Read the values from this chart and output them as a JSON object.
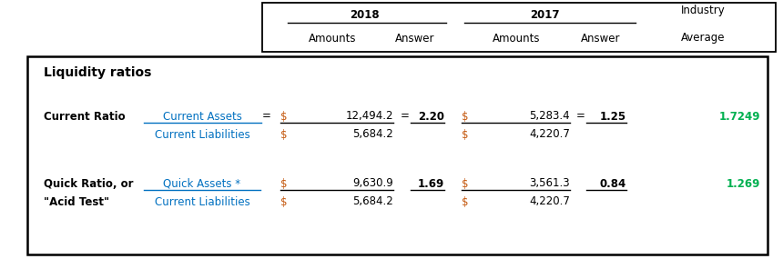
{
  "header_year_2018": "2018",
  "header_year_2017": "2017",
  "header_industry": "Industry",
  "header_amounts": "Amounts",
  "header_answer": "Answer",
  "header_average": "Average",
  "section_title": "Liquidity ratios",
  "ratio1_name": "Current Ratio",
  "ratio1_num_label": "Current Assets",
  "ratio1_eq": "=",
  "ratio1_dollar1": "$",
  "ratio1_num_2018": "12,494.2",
  "ratio1_eq2": "=",
  "ratio1_ans_2018": "2.20",
  "ratio1_dollar2": "$",
  "ratio1_num_2017": "5,283.4",
  "ratio1_eq3": "=",
  "ratio1_ans_2017": "1.25",
  "ratio1_ind_avg": "1.7249",
  "ratio1_den_label": "Current Liabilities",
  "ratio1_dollar3": "$",
  "ratio1_den_2018": "5,684.2",
  "ratio1_dollar4": "$",
  "ratio1_den_2017": "4,220.7",
  "ratio2_name1": "Quick Ratio, or",
  "ratio2_name2": "\"Acid Test\"",
  "ratio2_num_label": "Quick Assets *",
  "ratio2_dollar1": "$",
  "ratio2_num_2018": "9,630.9",
  "ratio2_ans_2018": "1.69",
  "ratio2_dollar2": "$",
  "ratio2_num_2017": "3,561.3",
  "ratio2_ans_2017": "0.84",
  "ratio2_ind_avg": "1.269",
  "ratio2_den_label": "Current Liabilities",
  "ratio2_dollar3": "$",
  "ratio2_den_2018": "5,684.2",
  "ratio2_dollar4": "$",
  "ratio2_den_2017": "4,220.7",
  "color_blue": "#0070C0",
  "color_green": "#00B050",
  "color_black": "#000000",
  "color_orange": "#C55A11",
  "bg_white": "#FFFFFF",
  "fig_width": 8.6,
  "fig_height": 3.07,
  "dpi": 100
}
